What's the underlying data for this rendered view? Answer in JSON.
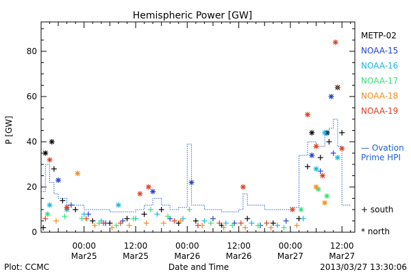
{
  "chart_data": {
    "type": "scatter",
    "title": "Hemispheric Power [GW]",
    "xlabel": "Date and Time",
    "ylabel": "P [GW]",
    "xlim": [
      "2013-03-24T14:00",
      "2013-03-27T15:00"
    ],
    "ylim": [
      0,
      93
    ],
    "x_tick_labels": [
      {
        "time": "00:00",
        "date": "Mar25",
        "at": "2013-03-25T00:00"
      },
      {
        "time": "12:00",
        "date": "Mar25",
        "at": "2013-03-25T12:00"
      },
      {
        "time": "00:00",
        "date": "Mar26",
        "at": "2013-03-26T00:00"
      },
      {
        "time": "12:00",
        "date": "Mar26",
        "at": "2013-03-26T12:00"
      },
      {
        "time": "00:00",
        "date": "Mar27",
        "at": "2013-03-27T00:00"
      },
      {
        "time": "12:00",
        "date": "Mar27",
        "at": "2013-03-27T12:00"
      }
    ],
    "y_ticks": [
      0,
      20,
      40,
      60,
      80
    ],
    "grid": false,
    "legend_position": "right",
    "marker_key": {
      "south": "+",
      "north": "*"
    },
    "series": [
      {
        "name": "METP-02",
        "color": "#000000",
        "points": [
          [
            "2013-03-24T14:30",
            2,
            "+"
          ],
          [
            "2013-03-24T15:00",
            35,
            "*"
          ],
          [
            "2013-03-24T16:30",
            40,
            "*"
          ],
          [
            "2013-03-24T17:00",
            28,
            "+"
          ],
          [
            "2013-03-24T19:00",
            14,
            "+"
          ],
          [
            "2013-03-24T22:00",
            10,
            "+"
          ],
          [
            "2013-03-25T02:00",
            5,
            "+"
          ],
          [
            "2013-03-25T06:00",
            4,
            "+"
          ],
          [
            "2013-03-25T10:00",
            6,
            "+"
          ],
          [
            "2013-03-25T14:00",
            8,
            "+"
          ],
          [
            "2013-03-25T18:00",
            10,
            "+"
          ],
          [
            "2013-03-25T22:00",
            4,
            "+"
          ],
          [
            "2013-03-26T02:00",
            5,
            "+"
          ],
          [
            "2013-03-26T08:00",
            3,
            "+"
          ],
          [
            "2013-03-26T14:00",
            6,
            "+"
          ],
          [
            "2013-03-26T20:00",
            4,
            "+"
          ],
          [
            "2013-03-27T02:00",
            6,
            "+"
          ],
          [
            "2013-03-27T04:00",
            29,
            "+"
          ],
          [
            "2013-03-27T05:00",
            44,
            "*"
          ],
          [
            "2013-03-27T07:00",
            33,
            "+"
          ],
          [
            "2013-03-27T08:30",
            44,
            "*"
          ],
          [
            "2013-03-27T09:00",
            40,
            "+"
          ],
          [
            "2013-03-27T11:00",
            64,
            "*"
          ],
          [
            "2013-03-27T12:00",
            44,
            "+"
          ]
        ]
      },
      {
        "name": "NOAA-15",
        "color": "#1f3fd0",
        "points": [
          [
            "2013-03-24T18:00",
            23,
            "*"
          ],
          [
            "2013-03-24T21:00",
            12,
            "+"
          ],
          [
            "2013-03-25T01:00",
            8,
            "+"
          ],
          [
            "2013-03-25T05:00",
            4,
            "+"
          ],
          [
            "2013-03-25T09:00",
            5,
            "+"
          ],
          [
            "2013-03-25T16:00",
            18,
            "*"
          ],
          [
            "2013-03-25T20:00",
            6,
            "+"
          ],
          [
            "2013-03-26T01:00",
            22,
            "*"
          ],
          [
            "2013-03-26T06:00",
            6,
            "+"
          ],
          [
            "2013-03-26T11:00",
            4,
            "+"
          ],
          [
            "2013-03-26T17:00",
            3,
            "+"
          ],
          [
            "2013-03-26T23:00",
            5,
            "+"
          ],
          [
            "2013-03-27T05:00",
            34,
            "*"
          ],
          [
            "2013-03-27T07:00",
            27,
            "+"
          ],
          [
            "2013-03-27T09:30",
            60,
            "*"
          ],
          [
            "2013-03-27T10:00",
            35,
            "+"
          ]
        ]
      },
      {
        "name": "NOAA-16",
        "color": "#19b6e0",
        "points": [
          [
            "2013-03-24T16:00",
            12,
            "*"
          ],
          [
            "2013-03-24T20:00",
            10,
            "*"
          ],
          [
            "2013-03-25T00:00",
            8,
            "+"
          ],
          [
            "2013-03-25T04:00",
            5,
            "+"
          ],
          [
            "2013-03-25T08:00",
            12,
            "*"
          ],
          [
            "2013-03-25T12:00",
            6,
            "+"
          ],
          [
            "2013-03-25T17:00",
            8,
            "+"
          ],
          [
            "2013-03-25T23:00",
            6,
            "+"
          ],
          [
            "2013-03-26T04:00",
            5,
            "+"
          ],
          [
            "2013-03-26T09:00",
            4,
            "+"
          ],
          [
            "2013-03-26T15:00",
            4,
            "+"
          ],
          [
            "2013-03-26T21:00",
            3,
            "+"
          ],
          [
            "2013-03-27T03:00",
            6,
            "+"
          ],
          [
            "2013-03-27T06:00",
            28,
            "*"
          ],
          [
            "2013-03-27T08:00",
            44,
            "*"
          ],
          [
            "2013-03-27T11:00",
            33,
            "*"
          ]
        ]
      },
      {
        "name": "NOAA-17",
        "color": "#33e07a",
        "points": [
          [
            "2013-03-24T15:30",
            8,
            "*"
          ],
          [
            "2013-03-24T19:30",
            7,
            "+"
          ],
          [
            "2013-03-24T23:30",
            6,
            "+"
          ],
          [
            "2013-03-25T03:30",
            4,
            "+"
          ],
          [
            "2013-03-25T07:30",
            3,
            "+"
          ],
          [
            "2013-03-25T11:30",
            6,
            "+"
          ],
          [
            "2013-03-25T15:30",
            10,
            "+"
          ],
          [
            "2013-03-25T19:30",
            7,
            "+"
          ],
          [
            "2013-03-26T00:30",
            10,
            "+"
          ],
          [
            "2013-03-26T05:30",
            4,
            "+"
          ],
          [
            "2013-03-26T10:30",
            3,
            "+"
          ],
          [
            "2013-03-26T16:30",
            3,
            "+"
          ],
          [
            "2013-03-26T22:30",
            2,
            "+"
          ],
          [
            "2013-03-27T02:30",
            10,
            "*"
          ],
          [
            "2013-03-27T06:30",
            19,
            "*"
          ],
          [
            "2013-03-27T08:30",
            16,
            "*"
          ]
        ]
      },
      {
        "name": "NOAA-18",
        "color": "#f08c1e",
        "points": [
          [
            "2013-03-24T17:30",
            5,
            "+"
          ],
          [
            "2013-03-24T22:30",
            26,
            "*"
          ],
          [
            "2013-03-25T02:30",
            3,
            "+"
          ],
          [
            "2013-03-25T06:30",
            2,
            "+"
          ],
          [
            "2013-03-25T10:30",
            3,
            "+"
          ],
          [
            "2013-03-25T14:30",
            4,
            "+"
          ],
          [
            "2013-03-25T18:30",
            4,
            "+"
          ],
          [
            "2013-03-25T22:30",
            5,
            "+"
          ],
          [
            "2013-03-26T03:30",
            3,
            "+"
          ],
          [
            "2013-03-26T08:30",
            2,
            "+"
          ],
          [
            "2013-03-26T13:30",
            2,
            "+"
          ],
          [
            "2013-03-26T19:30",
            2,
            "+"
          ],
          [
            "2013-03-27T01:30",
            3,
            "+"
          ],
          [
            "2013-03-27T06:00",
            20,
            "*"
          ],
          [
            "2013-03-27T08:00",
            13,
            "*"
          ]
        ]
      },
      {
        "name": "NOAA-19",
        "color": "#e03a1e",
        "points": [
          [
            "2013-03-24T15:00",
            6,
            "+"
          ],
          [
            "2013-03-24T16:00",
            32,
            "*"
          ],
          [
            "2013-03-24T20:00",
            11,
            "*"
          ],
          [
            "2013-03-25T00:30",
            6,
            "+"
          ],
          [
            "2013-03-25T04:30",
            4,
            "+"
          ],
          [
            "2013-03-25T08:30",
            4,
            "+"
          ],
          [
            "2013-03-25T13:00",
            17,
            "*"
          ],
          [
            "2013-03-25T15:00",
            20,
            "*"
          ],
          [
            "2013-03-25T21:00",
            5,
            "+"
          ],
          [
            "2013-03-26T02:30",
            3,
            "+"
          ],
          [
            "2013-03-26T07:30",
            4,
            "+"
          ],
          [
            "2013-03-26T12:30",
            4,
            "+"
          ],
          [
            "2013-03-26T13:00",
            20,
            "*"
          ],
          [
            "2013-03-26T18:30",
            4,
            "+"
          ],
          [
            "2013-03-27T00:30",
            10,
            "*"
          ],
          [
            "2013-03-27T04:00",
            52,
            "*"
          ],
          [
            "2013-03-27T06:00",
            38,
            "*"
          ],
          [
            "2013-03-27T07:30",
            25,
            "*"
          ],
          [
            "2013-03-27T10:30",
            84,
            "*"
          ],
          [
            "2013-03-27T11:00",
            64,
            "+"
          ],
          [
            "2013-03-27T12:00",
            37,
            "*"
          ]
        ]
      }
    ],
    "hpi_line": {
      "name": "Ovation Prime HPI",
      "legend_label": "— Ovation Prime HPI",
      "color": "#1f5fd0",
      "style": "dotted-step",
      "values": [
        [
          "2013-03-24T14:00",
          18
        ],
        [
          "2013-03-24T15:00",
          30
        ],
        [
          "2013-03-24T16:00",
          22
        ],
        [
          "2013-03-24T17:00",
          17
        ],
        [
          "2013-03-24T18:00",
          15
        ],
        [
          "2013-03-24T20:00",
          12
        ],
        [
          "2013-03-24T22:00",
          12
        ],
        [
          "2013-03-25T00:00",
          10
        ],
        [
          "2013-03-25T06:00",
          9
        ],
        [
          "2013-03-25T12:00",
          10
        ],
        [
          "2013-03-25T14:00",
          12
        ],
        [
          "2013-03-25T16:00",
          15
        ],
        [
          "2013-03-25T18:00",
          12
        ],
        [
          "2013-03-25T20:00",
          10
        ],
        [
          "2013-03-25T22:00",
          11
        ],
        [
          "2013-03-26T00:00",
          39
        ],
        [
          "2013-03-26T01:00",
          12
        ],
        [
          "2013-03-26T04:00",
          10
        ],
        [
          "2013-03-26T08:00",
          9
        ],
        [
          "2013-03-26T12:00",
          10
        ],
        [
          "2013-03-26T13:00",
          17
        ],
        [
          "2013-03-26T14:00",
          12
        ],
        [
          "2013-03-26T18:00",
          10
        ],
        [
          "2013-03-26T22:00",
          10
        ],
        [
          "2013-03-27T00:00",
          11
        ],
        [
          "2013-03-27T02:00",
          34
        ],
        [
          "2013-03-27T04:00",
          40
        ],
        [
          "2013-03-27T06:00",
          38
        ],
        [
          "2013-03-27T08:00",
          43
        ],
        [
          "2013-03-27T09:00",
          46
        ],
        [
          "2013-03-27T10:00",
          50
        ],
        [
          "2013-03-27T11:00",
          38
        ],
        [
          "2013-03-27T12:00",
          12
        ],
        [
          "2013-03-27T14:00",
          12
        ]
      ]
    }
  },
  "labels": {
    "metp02": "METP-02",
    "noaa15": "NOAA-15",
    "noaa16": "NOAA-16",
    "noaa17": "NOAA-17",
    "noaa18": "NOAA-18",
    "noaa19": "NOAA-19",
    "ovation_line1": "— Ovation",
    "ovation_line2": "Prime HPI",
    "south": "+ south",
    "north": "* north"
  },
  "footer": {
    "left": "Plot: CCMC",
    "right": "2013/03/27 13:30:06"
  }
}
